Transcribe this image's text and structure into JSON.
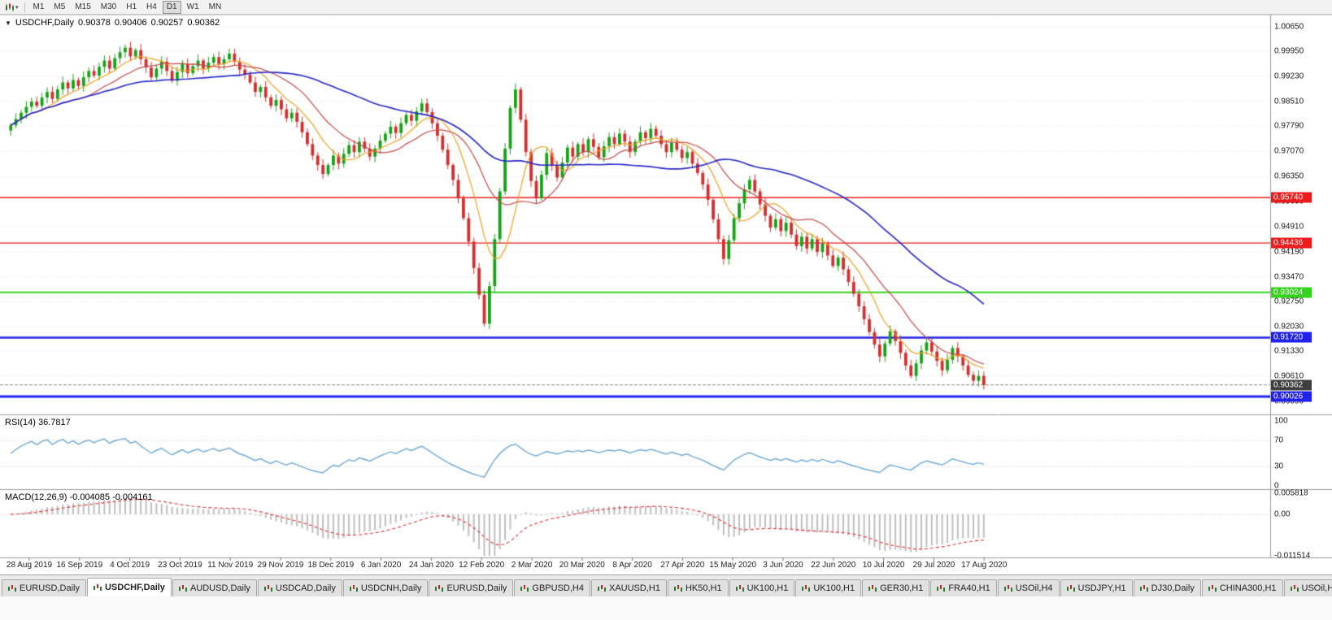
{
  "toolbar": {
    "timeframes": [
      "M1",
      "M5",
      "M15",
      "M30",
      "H1",
      "H4",
      "D1",
      "W1",
      "MN"
    ],
    "active_timeframe": "D1"
  },
  "chart_header": {
    "arrow": "▼",
    "symbol": "USDCHF,Daily",
    "open": "0.90378",
    "high": "0.90406",
    "low": "0.90257",
    "close": "0.90362"
  },
  "price_axis": {
    "ticks": [
      "1.00650",
      "0.99950",
      "0.99230",
      "0.98510",
      "0.97790",
      "0.97070",
      "0.96350",
      "0.95630",
      "0.94910",
      "0.94190",
      "0.93470",
      "0.92750",
      "0.92030",
      "0.91330",
      "0.90610",
      "0.89890"
    ]
  },
  "time_axis": {
    "dates": [
      "28 Aug 2019",
      "16 Sep 2019",
      "4 Oct 2019",
      "23 Oct 2019",
      "11 Nov 2019",
      "29 Nov 2019",
      "18 Dec 2019",
      "6 Jan 2020",
      "24 Jan 2020",
      "12 Feb 2020",
      "2 Mar 2020",
      "20 Mar 2020",
      "8 Apr 2020",
      "27 Apr 2020",
      "15 May 2020",
      "3 Jun 2020",
      "22 Jun 2020",
      "10 Jul 2020",
      "29 Jul 2020",
      "17 Aug 2020"
    ]
  },
  "rsi": {
    "name": "RSI(14)",
    "value": "36.7817",
    "axis": [
      "100",
      "70",
      "30",
      "0"
    ],
    "levels": [
      70,
      30
    ],
    "line_color": "#569bd2"
  },
  "macd": {
    "name": "MACD(12,26,9)",
    "value": "-0.004085 -0.004161",
    "axis_max": "0.005818",
    "axis_zero": "0.00",
    "axis_min": "-0.011514",
    "hist_color": "#bfbfbf",
    "signal_color": "#e03030"
  },
  "tabs": [
    {
      "label": "EURUSD,Daily",
      "active": false
    },
    {
      "label": "USDCHF,Daily",
      "active": true
    },
    {
      "label": "AUDUSD,Daily",
      "active": false
    },
    {
      "label": "USDCAD,Daily",
      "active": false
    },
    {
      "label": "USDCNH,Daily",
      "active": false
    },
    {
      "label": "EURUSD,Daily",
      "active": false
    },
    {
      "label": "GBPUSD,H4",
      "active": false
    },
    {
      "label": "XAUUSD,H1",
      "active": false
    },
    {
      "label": "HK50,H1",
      "active": false
    },
    {
      "label": "UK100,H1",
      "active": false
    },
    {
      "label": "UK100,H1",
      "active": false
    },
    {
      "label": "GER30,H1",
      "active": false
    },
    {
      "label": "FRA40,H1",
      "active": false
    },
    {
      "label": "USOil,H4",
      "active": false
    },
    {
      "label": "USDJPY,H1",
      "active": false
    },
    {
      "label": "DJ30,Daily",
      "active": false
    },
    {
      "label": "CHINA300,H1",
      "active": false
    },
    {
      "label": "USOil,H1",
      "active": false
    }
  ],
  "chart_data": {
    "type": "candlestick",
    "symbol": "USDCHF",
    "timeframe": "Daily",
    "title": "USDCHF,Daily",
    "y_range": [
      0.8956,
      1.0086
    ],
    "x_tick_labels": [
      "28 Aug 2019",
      "16 Sep 2019",
      "4 Oct 2019",
      "23 Oct 2019",
      "11 Nov 2019",
      "29 Nov 2019",
      "18 Dec 2019",
      "6 Jan 2020",
      "24 Jan 2020",
      "12 Feb 2020",
      "2 Mar 2020",
      "20 Mar 2020",
      "8 Apr 2020",
      "27 Apr 2020",
      "15 May 2020",
      "3 Jun 2020",
      "22 Jun 2020",
      "10 Jul 2020",
      "29 Jul 2020",
      "17 Aug 2020"
    ],
    "closes": [
      0.9782,
      0.98,
      0.9818,
      0.9835,
      0.985,
      0.9838,
      0.9862,
      0.9878,
      0.9858,
      0.9885,
      0.9905,
      0.9888,
      0.9912,
      0.9895,
      0.992,
      0.9938,
      0.9925,
      0.995,
      0.9968,
      0.9945,
      0.9975,
      0.9992,
      1.0005,
      0.998,
      0.9998,
      0.9972,
      0.9948,
      0.992,
      0.9945,
      0.9965,
      0.9938,
      0.991,
      0.9935,
      0.9958,
      0.9932,
      0.9952,
      0.9968,
      0.9945,
      0.9962,
      0.9978,
      0.9958,
      0.9972,
      0.9988,
      0.9965,
      0.9942,
      0.9928,
      0.9905,
      0.9878,
      0.9892,
      0.9862,
      0.9838,
      0.9855,
      0.9828,
      0.9802,
      0.9818,
      0.9792,
      0.9762,
      0.9728,
      0.9695,
      0.9668,
      0.9642,
      0.9668,
      0.9695,
      0.9672,
      0.97,
      0.9725,
      0.9705,
      0.9735,
      0.9715,
      0.9692,
      0.9715,
      0.9738,
      0.9758,
      0.9778,
      0.976,
      0.9788,
      0.9812,
      0.9795,
      0.9822,
      0.9845,
      0.982,
      0.9788,
      0.9752,
      0.9712,
      0.9668,
      0.9625,
      0.9572,
      0.9515,
      0.9448,
      0.9372,
      0.9295,
      0.9212,
      0.932,
      0.9455,
      0.9592,
      0.9715,
      0.9832,
      0.9885,
      0.9798,
      0.9705,
      0.9622,
      0.9572,
      0.964,
      0.9702,
      0.9668,
      0.9632,
      0.9675,
      0.9718,
      0.9692,
      0.9728,
      0.9705,
      0.9742,
      0.972,
      0.969,
      0.9722,
      0.9748,
      0.9728,
      0.9758,
      0.9735,
      0.9705,
      0.9735,
      0.9762,
      0.9745,
      0.9772,
      0.9752,
      0.9728,
      0.9705,
      0.9732,
      0.9712,
      0.9688,
      0.9705,
      0.9672,
      0.9645,
      0.9612,
      0.9568,
      0.9512,
      0.9455,
      0.9398,
      0.9452,
      0.9515,
      0.9558,
      0.9598,
      0.9625,
      0.9592,
      0.9555,
      0.9522,
      0.9488,
      0.9512,
      0.9478,
      0.9502,
      0.9468,
      0.9435,
      0.9462,
      0.9428,
      0.9455,
      0.9418,
      0.9442,
      0.9408,
      0.9378,
      0.9402,
      0.9368,
      0.9332,
      0.9298,
      0.9262,
      0.9225,
      0.9188,
      0.9152,
      0.9118,
      0.9155,
      0.919,
      0.9162,
      0.9128,
      0.9092,
      0.9062,
      0.9098,
      0.9135,
      0.9158,
      0.9132,
      0.9105,
      0.9078,
      0.9108,
      0.9142,
      0.9118,
      0.9092,
      0.9065,
      0.9048,
      0.9062,
      0.9036
    ],
    "last_ohlc": {
      "open": 0.90378,
      "high": 0.90406,
      "low": 0.90257,
      "close": 0.90362
    },
    "bull_color": "#17a317",
    "bear_color": "#d32f2f",
    "moving_averages": [
      {
        "period": 8,
        "color": "#f0a020"
      },
      {
        "period": 16,
        "color": "#c84848"
      },
      {
        "period": 45,
        "color": "#2626c8"
      }
    ],
    "horizontal_lines": [
      {
        "price": 0.9574,
        "label": "0.95740",
        "color": "#ee1c1c",
        "width": 1.4
      },
      {
        "price": 0.94436,
        "label": "0.94436",
        "color": "#ee1c1c",
        "width": 1.4
      },
      {
        "price": 0.93024,
        "label": "0.93024",
        "color": "#35d41c",
        "width": 2
      },
      {
        "price": 0.9172,
        "label": "0.91720",
        "color": "#2222ee",
        "width": 2.4
      },
      {
        "price": 0.90026,
        "label": "0.90026",
        "color": "#2222ee",
        "width": 3
      }
    ],
    "current_price": {
      "value": 0.90362,
      "label": "0.90362",
      "badge_color": "#3f3f3f"
    },
    "indicators": [
      {
        "type": "rsi",
        "period": 14,
        "last": 36.7817,
        "scale": [
          0,
          100
        ],
        "levels": [
          70,
          30
        ]
      },
      {
        "type": "macd",
        "fast": 12,
        "slow": 26,
        "signal": 9,
        "last_macd": -0.004085,
        "last_signal": -0.004161,
        "scale": [
          -0.011514,
          0.005818
        ]
      }
    ]
  }
}
